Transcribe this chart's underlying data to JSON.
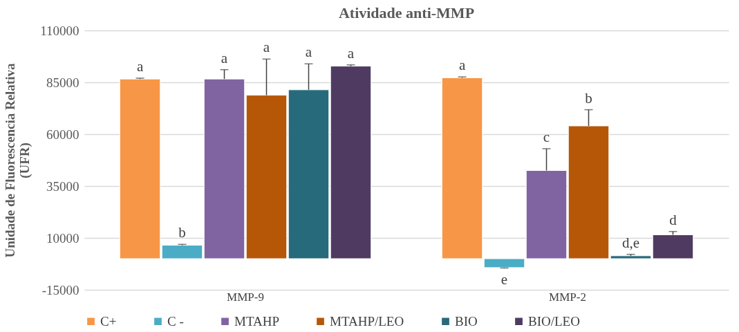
{
  "chart_data": {
    "type": "bar",
    "title": "Atividade anti-MMP",
    "ylabel": "Unidade de Fluorescencia Relativa\n(UFR)",
    "categories": [
      "MMP-9",
      "MMP-2"
    ],
    "series": [
      {
        "name": "C+",
        "color": "#f79646",
        "values": [
          86600,
          87200
        ],
        "errors": [
          [
            86600,
            87000
          ],
          [
            87200,
            87600
          ]
        ],
        "value_labels": [
          "a",
          "a"
        ]
      },
      {
        "name": "C -",
        "color": "#4bacc6",
        "values": [
          6500,
          -4300
        ],
        "errors": [
          [
            6500,
            6900
          ],
          [
            -4500,
            -4300
          ]
        ],
        "value_labels": [
          "b",
          "e"
        ]
      },
      {
        "name": "MTAHP",
        "color": "#8064a2",
        "values": [
          86600,
          42500
        ],
        "errors": [
          [
            86600,
            91100
          ],
          [
            42500,
            53000
          ]
        ],
        "value_labels": [
          "a",
          "c"
        ]
      },
      {
        "name": "MTAHP/LEO",
        "color": "#b65708",
        "values": [
          78800,
          64000
        ],
        "errors": [
          [
            78800,
            96200
          ],
          [
            64000,
            71800
          ]
        ],
        "value_labels": [
          "a",
          "b"
        ]
      },
      {
        "name": "BIO",
        "color": "#276a7c",
        "values": [
          81400,
          1400
        ],
        "errors": [
          [
            81400,
            93900
          ],
          [
            1400,
            2100
          ]
        ],
        "value_labels": [
          "a",
          "d,e"
        ]
      },
      {
        "name": "BIO/LEO",
        "color": "#4f3b62",
        "values": [
          92800,
          11500
        ],
        "errors": [
          [
            92800,
            93400
          ],
          [
            11500,
            13100
          ]
        ],
        "value_labels": [
          "a",
          "d"
        ]
      }
    ],
    "ylim": [
      -15000,
      110000
    ],
    "yticks": [
      -15000,
      10000,
      35000,
      60000,
      85000,
      110000
    ],
    "grid": "y",
    "legend": "bottom"
  }
}
